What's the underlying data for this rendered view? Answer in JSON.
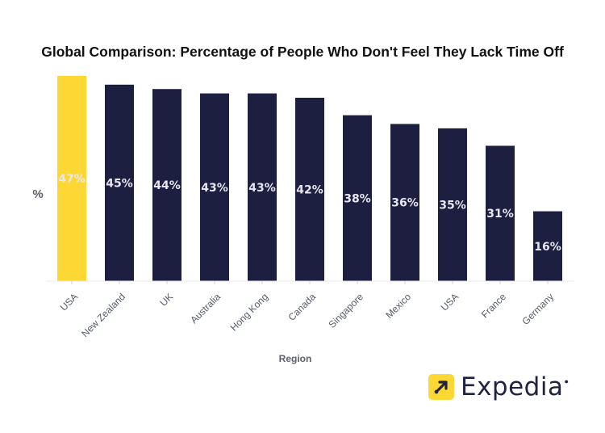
{
  "chart_data": {
    "type": "bar",
    "title": "Global Comparison: Percentage of People Who Don't Feel They Lack Time Off",
    "xlabel": "Region",
    "ylabel": "%",
    "categories": [
      "USA",
      "New Zealand",
      "UK",
      "Australia",
      "Hong Kong",
      "Canada",
      "Singapore",
      "Mexico",
      "USA",
      "France",
      "Germany"
    ],
    "values": [
      47,
      45,
      44,
      43,
      43,
      42,
      38,
      36,
      35,
      31,
      16
    ],
    "data_labels": [
      "47%",
      "45%",
      "44%",
      "43%",
      "43%",
      "42%",
      "38%",
      "36%",
      "35%",
      "31%",
      "16%"
    ],
    "highlight_index": 0,
    "ylim": [
      0,
      47
    ],
    "grid": false,
    "colors": {
      "default_bar": "#1c1f3f",
      "highlight_bar": "#fdd835",
      "highlight_label": "#fff6c4",
      "default_label": "#e6e6ef"
    }
  },
  "logo": {
    "brand": "Expedia",
    "mark_icon": "expedia-arrow-icon",
    "mark_color": "#fdd835",
    "text_color": "#1f2340"
  }
}
